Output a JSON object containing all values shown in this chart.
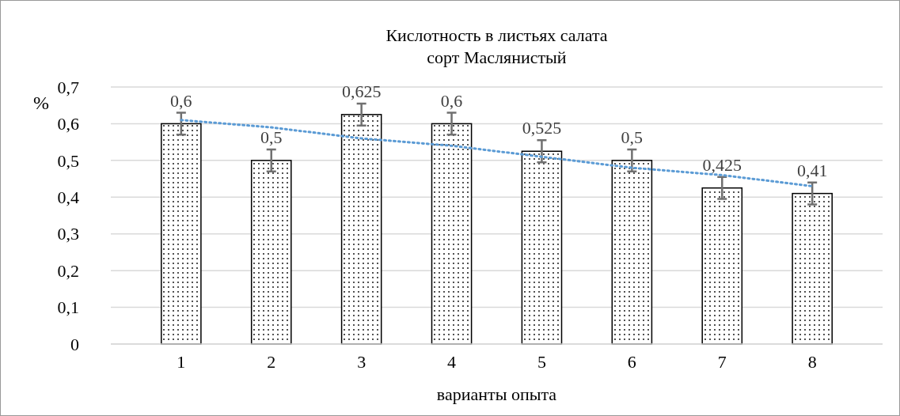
{
  "chart_data": {
    "type": "bar",
    "title": "Кислотность в листьях салата",
    "subtitle": "сорт Маслянистый",
    "xlabel": "варианты опыта",
    "ylabel": "%",
    "categories": [
      "1",
      "2",
      "3",
      "4",
      "5",
      "6",
      "7",
      "8"
    ],
    "series": [
      {
        "color": "#ffffff",
        "values": [
          0.6,
          0.5,
          0.625,
          0.6,
          0.525,
          0.5,
          0.425,
          0.41
        ],
        "errors": [
          0.03,
          0.03,
          0.03,
          0.03,
          0.03,
          0.03,
          0.03,
          0.03
        ],
        "value_labels": [
          "0,6",
          "0,5",
          "0,625",
          "0,6",
          "0,525",
          "0,5",
          "0,425",
          "0,41"
        ]
      },
      {
        "type": "line",
        "color": "#5b9bd5",
        "line_style": "dotted",
        "marker": "none",
        "x": [
          "1",
          "2",
          "3",
          "4",
          "5",
          "6",
          "7",
          "8"
        ],
        "values": [
          0.61,
          0.59,
          0.56,
          0.54,
          0.51,
          0.48,
          0.46,
          0.43
        ]
      }
    ],
    "ylim": [
      0,
      0.7
    ],
    "yticks": [
      {
        "value": 0,
        "label": "0"
      },
      {
        "value": 0.1,
        "label": "0,1"
      },
      {
        "value": 0.2,
        "label": "0,2"
      },
      {
        "value": 0.3,
        "label": "0,3"
      },
      {
        "value": 0.4,
        "label": "0,4"
      },
      {
        "value": 0.5,
        "label": "0,5"
      },
      {
        "value": 0.6,
        "label": "0,6"
      },
      {
        "value": 0.7,
        "label": "0,7"
      }
    ],
    "grid": "y"
  }
}
